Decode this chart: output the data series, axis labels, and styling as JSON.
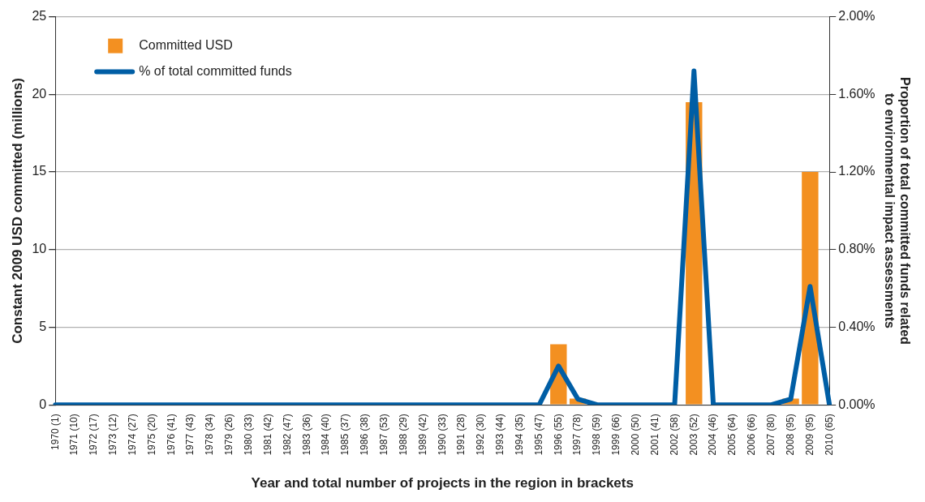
{
  "chart_data": {
    "type": "bar",
    "xlabel": "Year and total number of projects in the region in brackets",
    "ylabel": "Constant 2009 USD committed (millions)",
    "y2label": "Proportion of total committed funds related to environmental impact assessments",
    "categories": [
      "1970 (1)",
      "1971 (10)",
      "1972 (17)",
      "1973 (12)",
      "1974 (27)",
      "1975 (20)",
      "1976 (41)",
      "1977 (43)",
      "1978 (34)",
      "1979 (26)",
      "1980 (33)",
      "1981 (42)",
      "1982 (47)",
      "1983 (36)",
      "1984 (40)",
      "1985 (37)",
      "1986 (38)",
      "1987 (53)",
      "1988 (29)",
      "1989 (42)",
      "1990 (33)",
      "1991 (28)",
      "1992 (30)",
      "1993 (44)",
      "1994 (35)",
      "1995 (47)",
      "1996 (55)",
      "1997 (78)",
      "1998 (59)",
      "1999 (66)",
      "2000 (50)",
      "2001 (41)",
      "2002 (58)",
      "2003 (52)",
      "2004 (46)",
      "2005 (64)",
      "2006 (66)",
      "2007 (80)",
      "2008 (95)",
      "2009 (95)",
      "2010 (65)"
    ],
    "series": [
      {
        "name": "Committed USD",
        "color": "#f39021",
        "values": [
          0,
          0,
          0,
          0,
          0,
          0,
          0,
          0,
          0,
          0,
          0,
          0,
          0,
          0,
          0,
          0,
          0,
          0,
          0,
          0,
          0,
          0,
          0,
          0,
          0,
          0,
          3.9,
          0.4,
          0,
          0,
          0,
          0,
          0,
          19.5,
          0,
          0,
          0,
          0,
          0.4,
          15.0,
          0
        ]
      },
      {
        "name": "% of total committed funds",
        "type": "line",
        "axis": "y2",
        "color": "#005ea5",
        "values": [
          0,
          0,
          0,
          0,
          0,
          0,
          0,
          0,
          0,
          0,
          0,
          0,
          0,
          0,
          0,
          0,
          0,
          0,
          0,
          0,
          0,
          0,
          0,
          0,
          0,
          0,
          0.2,
          0.03,
          0,
          0,
          0,
          0,
          0,
          1.72,
          0,
          0,
          0,
          0,
          0.03,
          0.61,
          0
        ]
      }
    ],
    "ylim": [
      0,
      25
    ],
    "yticks": [
      0,
      5,
      10,
      15,
      20,
      25
    ],
    "y2lim": [
      0,
      2
    ],
    "y2ticks": [
      {
        "value": 0,
        "label": "0.00%"
      },
      {
        "value": 0.4,
        "label": "0.40%"
      },
      {
        "value": 0.8,
        "label": "0.80%"
      },
      {
        "value": 1.2,
        "label": "1.20%"
      },
      {
        "value": 1.6,
        "label": "1.60%"
      },
      {
        "value": 2,
        "label": "2.00%"
      }
    ],
    "grid": "y",
    "legend": "top left",
    "marker": "none",
    "line_style": "solid"
  }
}
